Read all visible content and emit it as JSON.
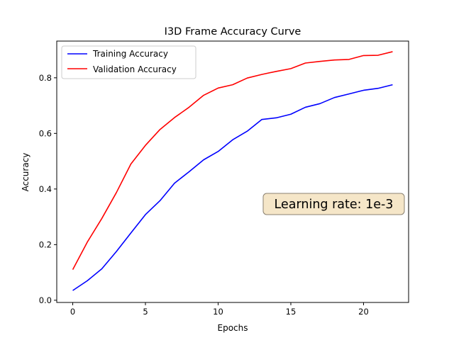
{
  "chart_data": {
    "type": "line",
    "title": "I3D Frame Accuracy Curve",
    "xlabel": "Epochs",
    "ylabel": "Accuracy",
    "xlim": [
      -1.1,
      23.1
    ],
    "ylim": [
      -0.008,
      0.932
    ],
    "xticks": [
      0,
      5,
      10,
      15,
      20
    ],
    "yticks": [
      0.0,
      0.2,
      0.4,
      0.6,
      0.8
    ],
    "ytick_labels": [
      "0.0",
      "0.2",
      "0.4",
      "0.6",
      "0.8"
    ],
    "grid": false,
    "legend_position": "upper-left",
    "x": [
      0,
      1,
      2,
      3,
      4,
      5,
      6,
      7,
      8,
      9,
      10,
      11,
      12,
      13,
      14,
      15,
      16,
      17,
      18,
      19,
      20,
      21,
      22
    ],
    "series": [
      {
        "name": "Training Accuracy",
        "color": "#0000ff",
        "values": [
          0.035,
          0.07,
          0.113,
          0.175,
          0.242,
          0.308,
          0.358,
          0.421,
          0.462,
          0.505,
          0.535,
          0.577,
          0.608,
          0.65,
          0.656,
          0.669,
          0.694,
          0.707,
          0.729,
          0.742,
          0.755,
          0.762,
          0.775
        ]
      },
      {
        "name": "Validation Accuracy",
        "color": "#ff0000",
        "values": [
          0.11,
          0.209,
          0.294,
          0.387,
          0.49,
          0.557,
          0.614,
          0.657,
          0.694,
          0.737,
          0.763,
          0.775,
          0.799,
          0.812,
          0.823,
          0.833,
          0.853,
          0.859,
          0.864,
          0.866,
          0.88,
          0.881,
          0.894
        ]
      }
    ],
    "annotation": {
      "text": "Learning rate: 1e-3",
      "background": "#f5e6c8",
      "border": "#8a8070"
    }
  }
}
